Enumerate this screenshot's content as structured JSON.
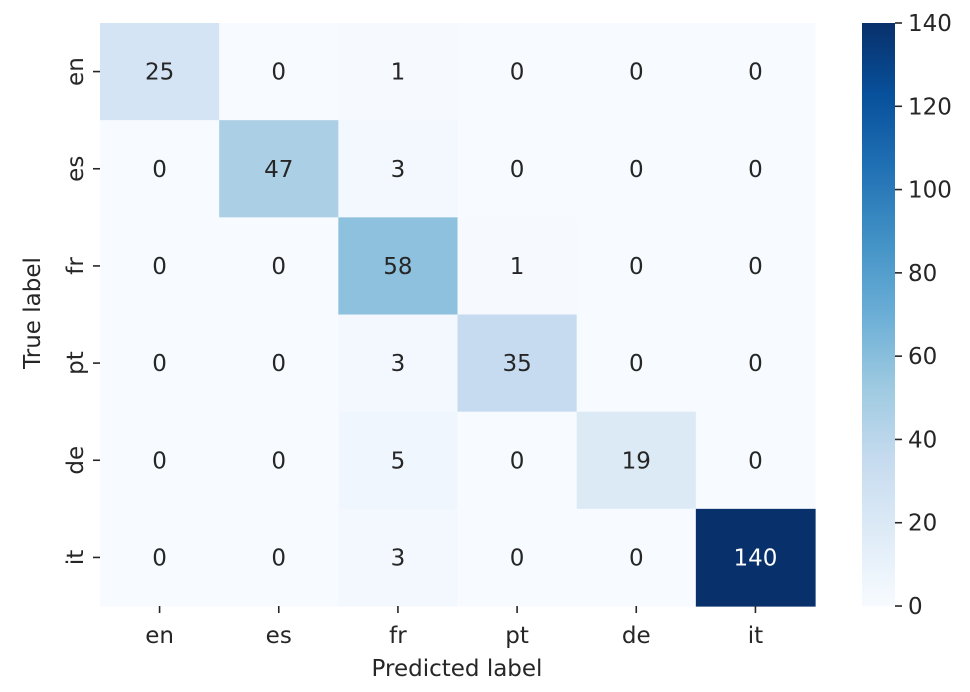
{
  "chart_data": {
    "type": "heatmap",
    "title": "",
    "xlabel": "Predicted label",
    "ylabel": "True label",
    "x_categories": [
      "en",
      "es",
      "fr",
      "pt",
      "de",
      "it"
    ],
    "y_categories": [
      "en",
      "es",
      "fr",
      "pt",
      "de",
      "it"
    ],
    "values": [
      [
        25,
        0,
        1,
        0,
        0,
        0
      ],
      [
        0,
        47,
        3,
        0,
        0,
        0
      ],
      [
        0,
        0,
        58,
        1,
        0,
        0
      ],
      [
        0,
        0,
        3,
        35,
        0,
        0
      ],
      [
        0,
        0,
        5,
        0,
        19,
        0
      ],
      [
        0,
        0,
        3,
        0,
        0,
        140
      ]
    ],
    "colorbar": {
      "min": 0,
      "max": 140,
      "ticks": [
        0,
        20,
        40,
        60,
        80,
        100,
        120,
        140
      ],
      "colormap": "Blues",
      "colors": [
        "#f7fbff",
        "#deebf7",
        "#c6dbef",
        "#9ecae1",
        "#6baed6",
        "#4292c6",
        "#2171b5",
        "#08519c",
        "#08306b"
      ]
    },
    "annotations": true
  }
}
